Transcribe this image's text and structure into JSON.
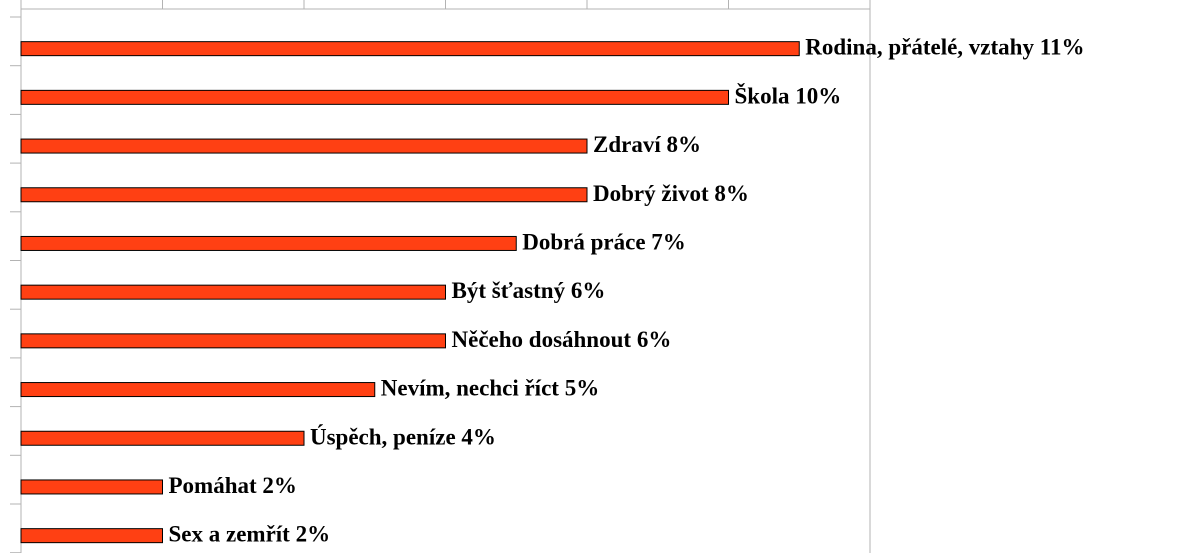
{
  "chart_data": {
    "type": "barh",
    "categories": [
      "Rodina, přátelé, vztahy",
      "Škola",
      "Zdraví",
      "Dobrý život",
      "Dobrá práce",
      "Být šťastný",
      "Něčeho dosáhnout",
      "Nevím, nechci říct",
      "Úspěch, peníze",
      "Pomáhat",
      "Sex a zemřít"
    ],
    "values": [
      11,
      10,
      8,
      8,
      7,
      6,
      6,
      5,
      4,
      2,
      2
    ],
    "value_labels": [
      "11%",
      "10%",
      "8%",
      "8%",
      "7%",
      "6%",
      "6%",
      "5%",
      "4%",
      "2%",
      "2%"
    ],
    "color": "#ff4013",
    "xlim": [
      0,
      12
    ],
    "xticks": [
      0,
      2,
      4,
      6,
      8,
      10,
      12
    ]
  }
}
